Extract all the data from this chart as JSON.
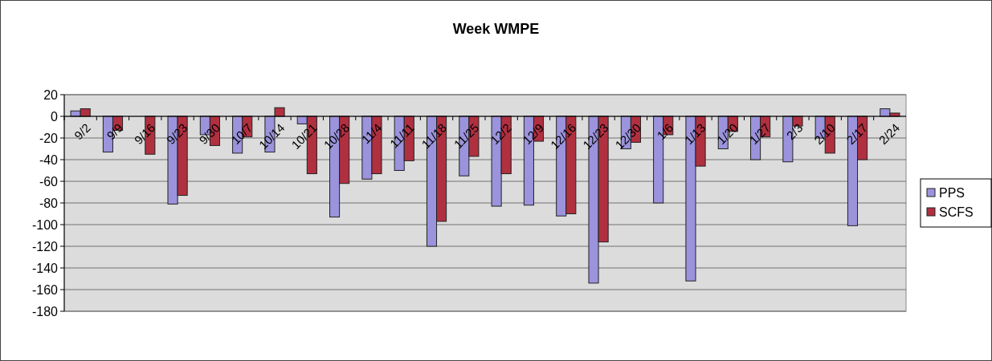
{
  "chart_data": {
    "type": "bar",
    "title": "Week WMPE",
    "categories": [
      "9/2",
      "9/9",
      "9/16",
      "9/23",
      "9/30",
      "10/7",
      "10/14",
      "10/21",
      "10/28",
      "11/4",
      "11/11",
      "11/18",
      "11/25",
      "12/2",
      "12/9",
      "12/16",
      "12/23",
      "12/30",
      "1/6",
      "1/13",
      "1/20",
      "1/27",
      "2/3",
      "2/10",
      "2/17",
      "2/24"
    ],
    "series": [
      {
        "name": "PPS",
        "color": "#9b93dc",
        "values": [
          5,
          -33,
          null,
          -81,
          -17,
          -34,
          -33,
          -7,
          -93,
          -58,
          -50,
          -120,
          -55,
          -83,
          -82,
          -92,
          -154,
          -30,
          -80,
          -152,
          -30,
          -40,
          -42,
          -20,
          -101,
          7
        ]
      },
      {
        "name": "SCFS",
        "color": "#b03040",
        "values": [
          7,
          -13,
          -35,
          -73,
          -27,
          -19,
          8,
          -53,
          -62,
          -53,
          -41,
          -97,
          -37,
          -53,
          -23,
          -90,
          -116,
          -24,
          -17,
          -46,
          -14,
          -19,
          -9,
          -34,
          -40,
          3
        ]
      }
    ],
    "ylim": [
      -180,
      20
    ],
    "yticks": [
      -180,
      -160,
      -140,
      -120,
      -100,
      -80,
      -60,
      -40,
      -20,
      0,
      20
    ],
    "grid": "y",
    "legend": "right"
  }
}
